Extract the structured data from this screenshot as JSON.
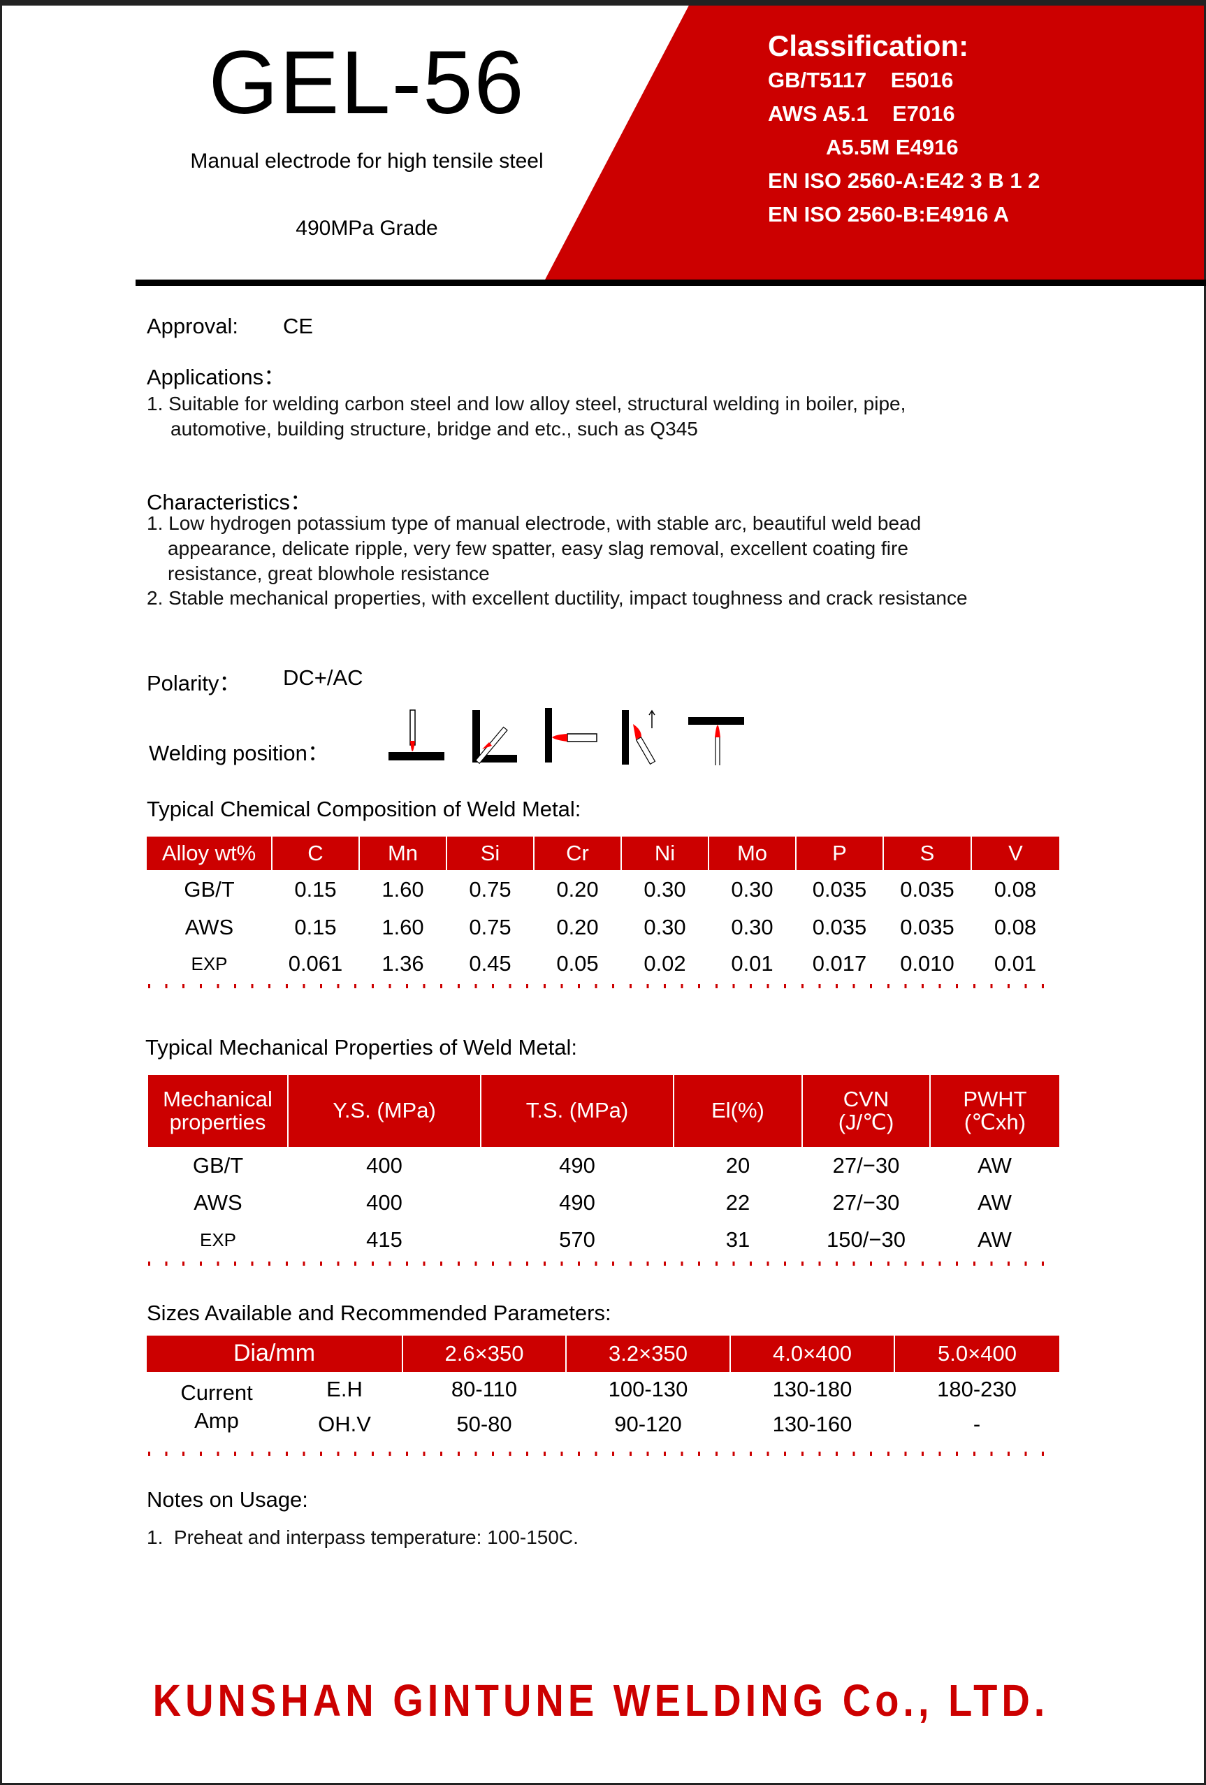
{
  "header": {
    "product": "GEL-56",
    "description": "Manual electrode for high tensile steel",
    "grade": "490MPa Grade",
    "classification_title": "Classification:",
    "classifications": [
      "GB/T5117    E5016",
      "AWS A5.1    E7016",
      "A5.5M  E4916",
      "EN ISO 2560-A:E42 3 B 1 2",
      "EN ISO 2560-B:E4916 A"
    ]
  },
  "approval": {
    "label": "Approval:",
    "value": "CE"
  },
  "applications": {
    "label": "Applications：",
    "items": [
      "1. Suitable for welding carbon steel and low alloy steel, structural welding in boiler, pipe,",
      "automotive, building structure, bridge and etc., such as Q345"
    ]
  },
  "characteristics": {
    "label": "Characteristics：",
    "lines": [
      "1. Low hydrogen potassium type of manual electrode, with stable arc, beautiful weld bead",
      "appearance, delicate ripple, very few spatter, easy slag removal, excellent coating fire",
      "resistance, great blowhole resistance",
      "2. Stable mechanical properties, with excellent ductility, impact toughness and crack resistance"
    ]
  },
  "polarity": {
    "label": "Polarity：",
    "value": "DC+/AC"
  },
  "welding_position": {
    "label": "Welding position：",
    "icons": [
      "flat-position-icon",
      "horizontal-fillet-icon",
      "horizontal-position-icon",
      "vertical-up-icon",
      "overhead-position-icon"
    ]
  },
  "chemical": {
    "title": "Typical Chemical Composition of Weld Metal:",
    "headers": [
      "Alloy wt%",
      "C",
      "Mn",
      "Si",
      "Cr",
      "Ni",
      "Mo",
      "P",
      "S",
      "V"
    ],
    "rows": [
      [
        "GB/T",
        "0.15",
        "1.60",
        "0.75",
        "0.20",
        "0.30",
        "0.30",
        "0.035",
        "0.035",
        "0.08"
      ],
      [
        "AWS",
        "0.15",
        "1.60",
        "0.75",
        "0.20",
        "0.30",
        "0.30",
        "0.035",
        "0.035",
        "0.08"
      ],
      [
        "EXP",
        "0.061",
        "1.36",
        "0.45",
        "0.05",
        "0.02",
        "0.01",
        "0.017",
        "0.010",
        "0.01"
      ]
    ]
  },
  "mechanical": {
    "title": "Typical Mechanical Properties of Weld Metal:",
    "headers": [
      [
        "Mechanical",
        "properties"
      ],
      [
        "Y.S. (MPa)",
        ""
      ],
      [
        "T.S. (MPa)",
        ""
      ],
      [
        "El(%)",
        ""
      ],
      [
        "CVN",
        "(J/℃)"
      ],
      [
        "PWHT",
        "(℃xh)"
      ]
    ],
    "rows": [
      [
        "GB/T",
        "400",
        "490",
        "20",
        "27/−30",
        "AW"
      ],
      [
        "AWS",
        "400",
        "490",
        "22",
        "27/−30",
        "AW"
      ],
      [
        "EXP",
        "415",
        "570",
        "31",
        "150/−30",
        "AW"
      ]
    ]
  },
  "sizes": {
    "title": "Sizes Available and Recommended Parameters:",
    "headers": [
      "Dia/mm",
      "2.6×350",
      "3.2×350",
      "4.0×400",
      "5.0×400"
    ],
    "row_label": [
      "Current",
      "Amp"
    ],
    "rows": [
      [
        "E.H",
        "80-110",
        "100-130",
        "130-180",
        "180-230"
      ],
      [
        "OH.V",
        "50-80",
        "90-120",
        "130-160",
        "-"
      ]
    ]
  },
  "notes": {
    "title": "Notes on Usage:",
    "items": [
      "1.  Preheat and interpass temperature: 100-150C."
    ]
  },
  "footer": {
    "company": "KUNSHAN GINTUNE WELDING Co., LTD."
  },
  "colors": {
    "brand_red": "#cc0000"
  }
}
